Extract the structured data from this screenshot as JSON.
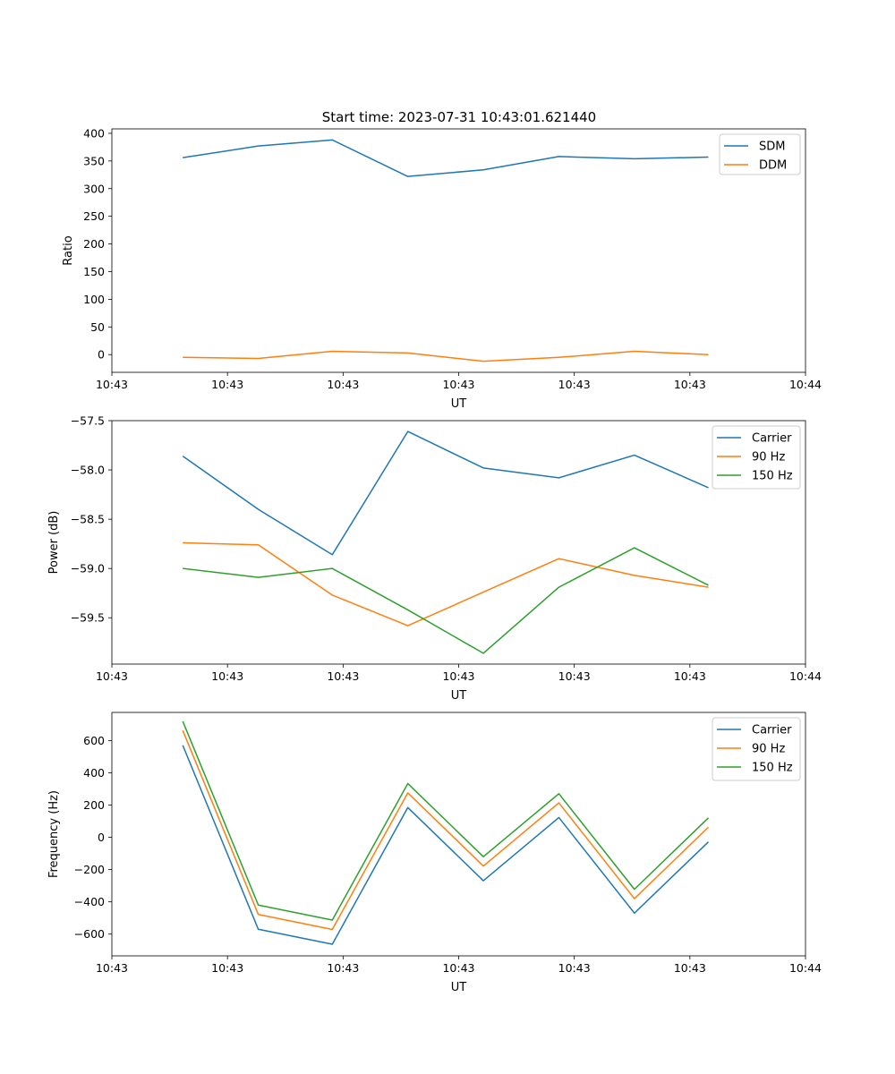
{
  "figure_title": "Start time: 2023-07-31 10:43:01.621440",
  "chart_data": [
    {
      "type": "line",
      "title": "Start time: 2023-07-31 10:43:01.621440",
      "xlabel": "UT",
      "ylabel": "Ratio",
      "xlim": [
        0,
        9
      ],
      "ylim": [
        -32,
        408
      ],
      "x": [
        0.92,
        1.9,
        2.86,
        3.84,
        4.82,
        5.8,
        6.78,
        7.74
      ],
      "xticks": [
        0,
        1.5,
        3,
        4.5,
        6,
        7.5,
        9
      ],
      "xtick_labels": [
        "10:43",
        "10:43",
        "10:43",
        "10:43",
        "10:43",
        "10:43",
        "10:44"
      ],
      "yticks": [
        0,
        50,
        100,
        150,
        200,
        250,
        300,
        350,
        400
      ],
      "ytick_labels": [
        "0",
        "50",
        "100",
        "150",
        "200",
        "250",
        "300",
        "350",
        "400"
      ],
      "legend": "top-right",
      "series": [
        {
          "name": "SDM",
          "color": "#1f77b4",
          "values": [
            356,
            377,
            388,
            322,
            334,
            358,
            354,
            357
          ]
        },
        {
          "name": "DDM",
          "color": "#ff7f0e",
          "values": [
            -5,
            -7,
            6,
            3,
            -12,
            -5,
            6,
            0
          ]
        }
      ]
    },
    {
      "type": "line",
      "title": "",
      "xlabel": "UT",
      "ylabel": "Power (dB)",
      "xlim": [
        0,
        9
      ],
      "ylim": [
        -59.97,
        -57.5
      ],
      "x": [
        0.92,
        1.9,
        2.86,
        3.84,
        4.82,
        5.8,
        6.78,
        7.74
      ],
      "xticks": [
        0,
        1.5,
        3,
        4.5,
        6,
        7.5,
        9
      ],
      "xtick_labels": [
        "10:43",
        "10:43",
        "10:43",
        "10:43",
        "10:43",
        "10:43",
        "10:44"
      ],
      "yticks": [
        -57.5,
        -58.0,
        -58.5,
        -59.0,
        -59.5
      ],
      "ytick_labels": [
        "−57.5",
        "−58.0",
        "−58.5",
        "−59.0",
        "−59.5"
      ],
      "legend": "top-right",
      "series": [
        {
          "name": "Carrier",
          "color": "#1f77b4",
          "values": [
            -57.86,
            -58.4,
            -58.86,
            -57.61,
            -57.98,
            -58.08,
            -57.85,
            -58.18
          ]
        },
        {
          "name": "90 Hz",
          "color": "#ff7f0e",
          "values": [
            -58.74,
            -58.76,
            -59.27,
            -59.58,
            -59.24,
            -58.9,
            -59.07,
            -59.19
          ]
        },
        {
          "name": "150 Hz",
          "color": "#2ca02c",
          "values": [
            -59.0,
            -59.09,
            -59.0,
            -59.42,
            -59.86,
            -59.19,
            -58.79,
            -59.17
          ]
        }
      ]
    },
    {
      "type": "line",
      "title": "",
      "xlabel": "UT",
      "ylabel": "Frequency (Hz)",
      "xlim": [
        0,
        9
      ],
      "ylim": [
        -735,
        775
      ],
      "x": [
        0.92,
        1.9,
        2.86,
        3.84,
        4.82,
        5.8,
        6.78,
        7.74
      ],
      "xticks": [
        0,
        1.5,
        3,
        4.5,
        6,
        7.5,
        9
      ],
      "xtick_labels": [
        "10:43",
        "10:43",
        "10:43",
        "10:43",
        "10:43",
        "10:43",
        "10:44"
      ],
      "yticks": [
        600,
        400,
        200,
        0,
        -200,
        -400,
        -600
      ],
      "ytick_labels": [
        "600",
        "400",
        "200",
        "0",
        "−200",
        "−400",
        "−600"
      ],
      "legend": "top-right",
      "series": [
        {
          "name": "Carrier",
          "color": "#1f77b4",
          "values": [
            571,
            -570,
            -663,
            185,
            -269,
            123,
            -470,
            -28
          ]
        },
        {
          "name": "90 Hz",
          "color": "#ff7f0e",
          "values": [
            663,
            -478,
            -571,
            276,
            -178,
            214,
            -380,
            63
          ]
        },
        {
          "name": "150 Hz",
          "color": "#2ca02c",
          "values": [
            720,
            -420,
            -513,
            334,
            -120,
            271,
            -322,
            121
          ]
        }
      ]
    }
  ]
}
